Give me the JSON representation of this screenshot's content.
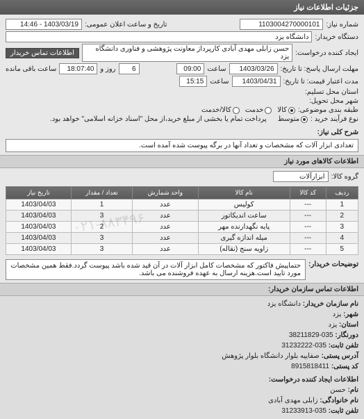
{
  "header": {
    "title": "جزئیات اطلاعات نیاز"
  },
  "top": {
    "req_no_label": "شماره نیاز:",
    "req_no": "1103004270000101",
    "announce_label": "تاریخ و ساعت اعلان عمومی:",
    "announce_value": "1403/03/19 - 14:46",
    "buyer_label": "دستگاه خریدار:",
    "buyer_value": "دانشگاه یزد",
    "requester_label": "ایجاد کننده درخواست:",
    "requester_value": "حسن زابلی مهدی آبادی کارپرداز معاونت پژوهشی و فناوری دانشگاه یزد",
    "contact_btn": "اطلاعات تماس خریدار",
    "reply_deadline_label": "مهلت ارسال پاسخ: تا تاریخ:",
    "reply_date": "1403/03/26",
    "reply_time_label": "ساعت",
    "reply_time": "09:00",
    "remaining_mid": "6",
    "remaining_label1": "روز و",
    "remaining_time": "18:07:40",
    "remaining_label2": "ساعت باقی مانده",
    "validity_label": "مدت اعتبار قیمت: تا تاریخ:",
    "validity_date": "1403/04/31",
    "validity_time_label": "ساعت",
    "validity_time": "15:15",
    "state_label": "استان محل تسلیم:",
    "city_label": "شهر محل تحویل:",
    "group_label": "طبقه بندی موضوعی:",
    "radio_all": "کالا",
    "radio_service": "خدمت",
    "radio_both": "کالا/خدمت",
    "process_label": "نوع فرآیند خرید :",
    "radio_mid": "متوسط",
    "process_note": "پرداخت تمام یا بخشی از مبلغ خرید،از محل \"اسناد خزانه اسلامی\" خواهد بود."
  },
  "desc": {
    "label": "شرح کلی نیاز:",
    "text": "تعدادی ابزار آلات که مشخصات و تعداد آنها در برگه پیوست شده آمده است."
  },
  "items_header": "اطلاعات کالاهای مورد نیاز",
  "group_row": {
    "label": "گروه کالا:",
    "value": "ابزارآلات"
  },
  "table": {
    "columns": [
      "ردیف",
      "کد کالا",
      "نام کالا",
      "واحد شمارش",
      "تعداد / مقدار",
      "تاریخ نیاز"
    ],
    "rows": [
      [
        "1",
        "---",
        "کولیس",
        "عدد",
        "1",
        "1403/04/03"
      ],
      [
        "2",
        "---",
        "ساعت اندیکاتور",
        "عدد",
        "3",
        "1403/04/03"
      ],
      [
        "3",
        "---",
        "پایه نگهدارنده مهر",
        "عدد",
        "2",
        "1403/04/03"
      ],
      [
        "4",
        "---",
        "میله اندازه گیری",
        "عدد",
        "3",
        "1403/04/03"
      ],
      [
        "5",
        "---",
        "زاویه سنج (نقاله)",
        "عدد",
        "3",
        "1403/04/03"
      ]
    ],
    "watermark": "۰۲۱-۸۸۳۴۹۶"
  },
  "buyer_note": {
    "label": "توضیحات خریدار:",
    "text": "حتماپیش فاکتور که مشخصات کامل ابزار آلات در آن قید شده باشد پیوست گردد.فقط همین مشخصات مورد تایید است.هزینه ارسال به عهده فروشنده می باشد."
  },
  "contact_header": "اطلاعات تماس سازمان خریدار:",
  "contact": {
    "org_label": "نام سازمان خریدار:",
    "org": "دانشگاه یزد",
    "city_label": "شهر:",
    "city": "یزد",
    "state_label": "استان:",
    "state": "یزد",
    "fax_label": "دورنگار:",
    "fax": "035-38211829",
    "phone_label": "تلفن ثابت:",
    "phone": "035-31232222",
    "addr_label": "آدرس پستی:",
    "addr": "صفاییه بلوار دانشگاه بلوار پژوهش",
    "post_label": "کد پستی:",
    "post": "8915818411",
    "creator_header": "اطلاعات ایجاد کننده درخواست:",
    "fname_label": "نام:",
    "fname": "حسن",
    "lname_label": "نام خانوادگی:",
    "lname": "زابلی مهدی آبادی",
    "cphone_label": "تلفن ثابت:",
    "cphone": "035-31233913"
  }
}
